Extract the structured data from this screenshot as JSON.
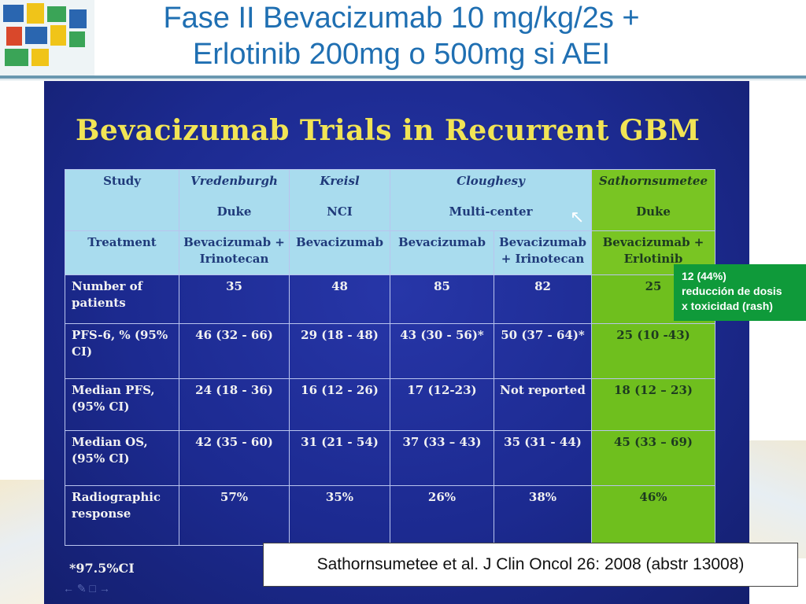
{
  "header": {
    "title_line1": "Fase II Bevacizumab 10 mg/kg/2s +",
    "title_line2": "Erlotinib 200mg o 500mg si AEI"
  },
  "slide": {
    "title": "Bevacizumab Trials in Recurrent GBM",
    "header_row": [
      "Study",
      "Vredenburgh",
      "Kreisl",
      "Cloughesy",
      "Sathornsumetee"
    ],
    "sites": [
      "Duke",
      "NCI",
      "Multi-center",
      "Duke"
    ],
    "treatments": [
      "Treatment",
      "Bevacizumab + Irinotecan",
      "Bevacizumab",
      "Bevacizumab",
      "Bevacizumab + Irinotecan",
      "Bevacizumab + Erlotinib"
    ],
    "rows": [
      {
        "label": "Number of patients",
        "cells": [
          "35",
          "48",
          "85",
          "82",
          "25"
        ]
      },
      {
        "label": "PFS-6, % (95% CI)",
        "cells": [
          "46 (32 - 66)",
          "29 (18 - 48)",
          "43 (30 - 56)*",
          "50 (37 - 64)*",
          "25 (10 -43)"
        ]
      },
      {
        "label": "Median PFS, (95% CI)",
        "cells": [
          "24 (18 - 36)",
          "16 (12 - 26)",
          "17 (12-23)",
          "Not reported",
          "18 (12 – 23)"
        ]
      },
      {
        "label": "Median OS, (95% CI)",
        "cells": [
          "42 (35 - 60)",
          "31 (21 - 54)",
          "37 (33 – 43)",
          "35 (31 - 44)",
          "45 (33 – 69)"
        ]
      },
      {
        "label": "Radiographic response",
        "cells": [
          "57%",
          "35%",
          "26%",
          "38%",
          "46%"
        ]
      }
    ],
    "footnote": "*97.5%CI"
  },
  "callout": {
    "line1": "12 (44%)",
    "line2": "reducción de dosis",
    "line3": "x toxicidad (rash)"
  },
  "citation": "Sathornsumetee et al. J Clin Oncol 26: 2008 (abstr 13008)",
  "colors": {
    "title_blue": "#1f6fb2",
    "slide_bg": "#1c2a90",
    "slide_title": "#f1e455",
    "header_cell": "#a9dcee",
    "highlight_green": "#6fbf1e",
    "callout_green": "#0f9a3a"
  }
}
